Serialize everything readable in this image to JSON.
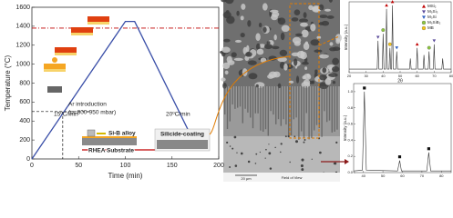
{
  "chart_data": [
    {
      "type": "line",
      "xlabel": "Time (min)",
      "ylabel": "Temperature (°C)",
      "x": [
        0,
        100,
        110,
        170
      ],
      "values": [
        0,
        1450,
        1450,
        250
      ],
      "color": "#3a4fa8",
      "xlim": [
        0,
        200
      ],
      "xticks": [
        0,
        50,
        100,
        150,
        200
      ],
      "ylim": [
        0,
        1600
      ],
      "yticks": [
        0,
        200,
        400,
        600,
        800,
        1000,
        1200,
        1400,
        1600
      ],
      "reference_line": {
        "value": 1380,
        "color": "#c00000"
      },
      "ar_point": {
        "x": 33,
        "y": 500
      },
      "annotations": {
        "heating_rate": "15ºC/min",
        "cooling_rate": "20ºC/min",
        "ar": "Ar introduction",
        "pressure": "(p=800-950 mbar)",
        "alloy": "Si-B alloy",
        "substrate": "RHEA Substrate",
        "coating": "Silicide-coating"
      }
    },
    {
      "type": "line",
      "xlabel": "2θ",
      "ylabel": "Intensity (a.u.)",
      "x": [
        20,
        36.5,
        37,
        37.5,
        39.5,
        40,
        40.5,
        41.5,
        42,
        42.5,
        43.5,
        44,
        44.5,
        45,
        45.5,
        46,
        47.5,
        48,
        48.5,
        55.5,
        56,
        56.5,
        59.5,
        60,
        60.5,
        63.5,
        64,
        64.5,
        66.5,
        67,
        67.5,
        69.5,
        70,
        70.5,
        74.5,
        75,
        75.5,
        80
      ],
      "values": [
        0.05,
        0.05,
        0.45,
        0.05,
        0.05,
        0.55,
        0.05,
        0.05,
        0.9,
        0.05,
        0.05,
        0.35,
        0.05,
        0.05,
        0.95,
        0.05,
        0.05,
        0.3,
        0.05,
        0.05,
        0.2,
        0.05,
        0.05,
        0.35,
        0.05,
        0.05,
        0.25,
        0.05,
        0.05,
        0.3,
        0.05,
        0.05,
        0.4,
        0.05,
        0.05,
        0.2,
        0.05,
        0.05
      ],
      "color": "#333333",
      "xlim": [
        20,
        80
      ],
      "xticks": [
        20,
        30,
        40,
        50,
        60,
        70,
        80
      ],
      "ylim": [
        0,
        1
      ],
      "series": [
        {
          "name": "MSi₂",
          "color": "#c00000",
          "marker": "triangle"
        },
        {
          "name": "M₅Si₃",
          "color": "#5a4a9a",
          "marker": "triangle-down"
        },
        {
          "name": "M₃Si",
          "color": "#3060c0",
          "marker": "triangle-down"
        },
        {
          "name": "M₅SiB₂",
          "color": "#8dc63f",
          "marker": "circle"
        },
        {
          "name": "MB",
          "color": "#f5c518",
          "marker": "circle"
        }
      ],
      "peak_markers": [
        {
          "x": 37,
          "phase": 1
        },
        {
          "x": 40,
          "phase": 3
        },
        {
          "x": 42,
          "phase": 0
        },
        {
          "x": 44,
          "phase": 4
        },
        {
          "x": 45.5,
          "phase": 0
        },
        {
          "x": 48,
          "phase": 2
        },
        {
          "x": 60,
          "phase": 0
        },
        {
          "x": 67,
          "phase": 3
        },
        {
          "x": 70,
          "phase": 1
        }
      ]
    },
    {
      "type": "line",
      "ylabel": "Intensity (a.u.)",
      "x": [
        35,
        39.5,
        40.5,
        41.5,
        57.5,
        58.6,
        59.5,
        72.5,
        73.5,
        74.5,
        85
      ],
      "values": [
        0.02,
        0.03,
        1.0,
        0.03,
        0.02,
        0.15,
        0.02,
        0.02,
        0.25,
        0.02,
        0.02
      ],
      "color": "#333333",
      "xlim": [
        35,
        85
      ],
      "xticks": [
        40,
        50,
        60,
        70,
        80
      ],
      "ylim": [
        0,
        1.1
      ],
      "yticks": [
        {
          "value": 0,
          "label": "0.0"
        },
        0.2,
        0.4,
        0.6,
        0.8,
        {
          "value": 1,
          "label": "1.0"
        }
      ],
      "peak_marker_indices": [
        2,
        5,
        8
      ]
    }
  ],
  "sem_image": {
    "scale_bar": "20 μm",
    "caption": "Field of View"
  }
}
